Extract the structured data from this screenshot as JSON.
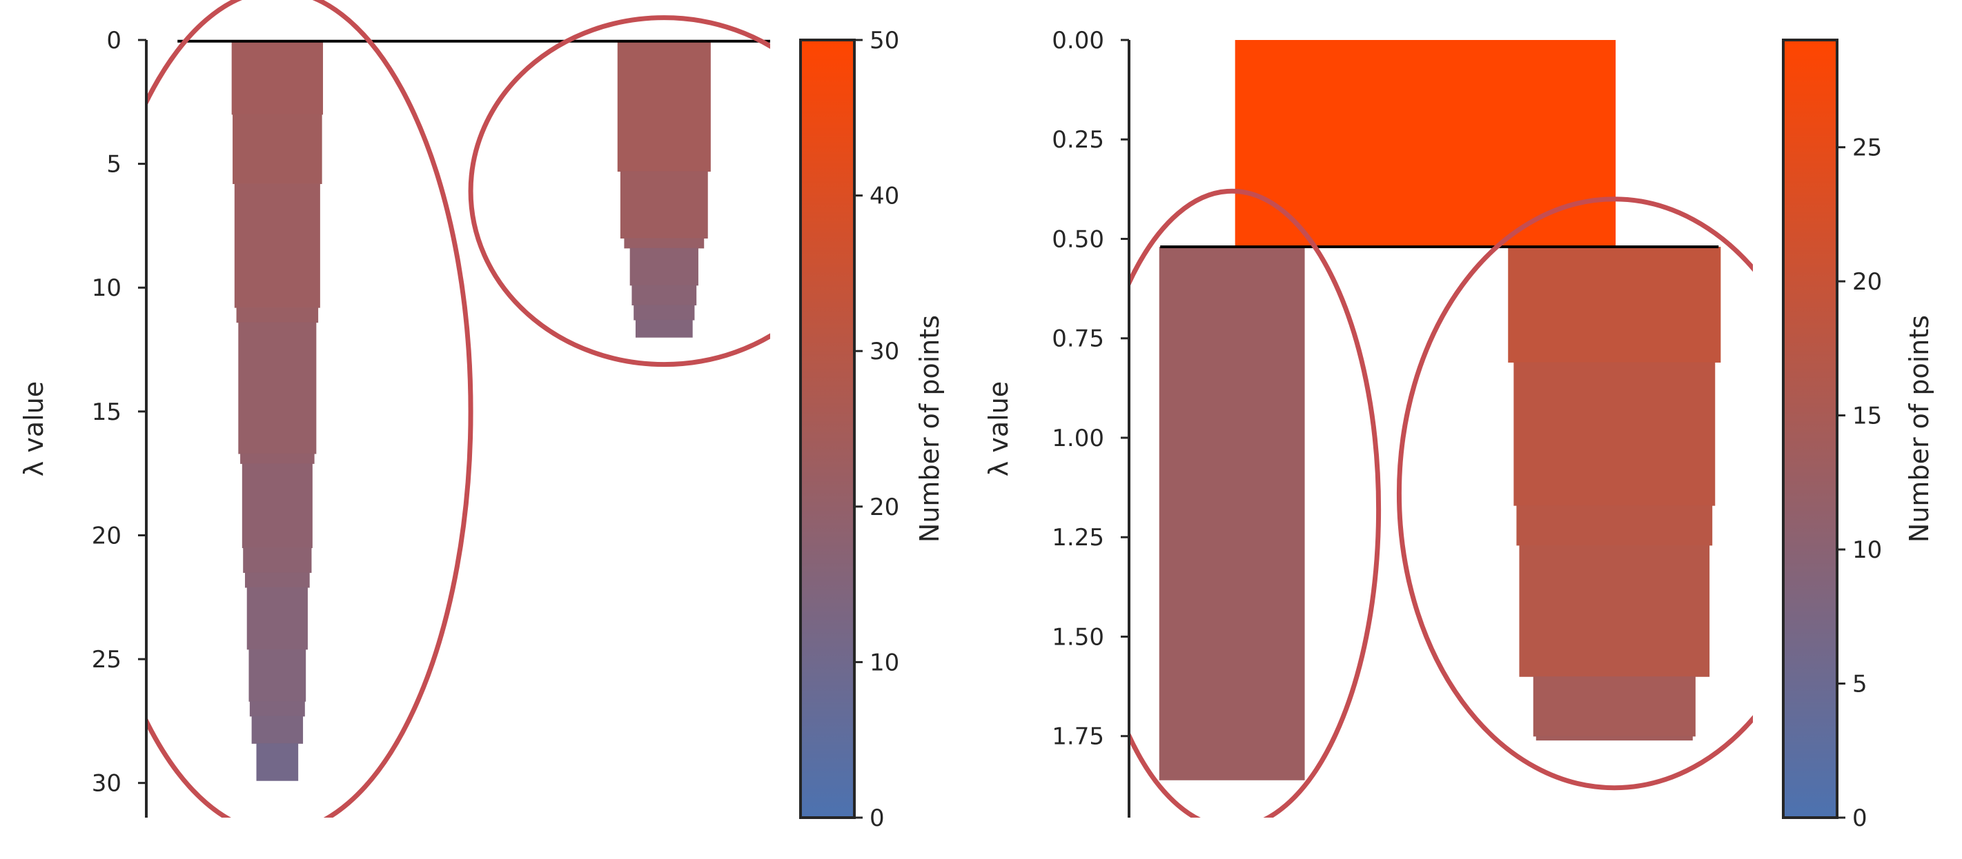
{
  "colors": {
    "low": "#4c72b0",
    "high": "#ff4500",
    "selection": "#c44e52",
    "split": "#000000",
    "axis": "#262626"
  },
  "chart_data": [
    {
      "type": "icicle",
      "title": "",
      "ylabel": "λ value",
      "ylim": [
        0,
        31.4
      ],
      "y_inverted": true,
      "yticks": [
        0,
        5,
        10,
        15,
        20,
        25,
        30
      ],
      "ytick_labels": [
        "0",
        "5",
        "10",
        "15",
        "20",
        "25",
        "30"
      ],
      "colorbar": {
        "label": "Number of points",
        "range": [
          0,
          50
        ],
        "ticks": [
          0,
          10,
          20,
          30,
          40,
          50
        ],
        "tick_labels": [
          "0",
          "10",
          "20",
          "30",
          "40",
          "50"
        ]
      },
      "root": {
        "lambda_start": 0,
        "lambda_end": 0.05,
        "size": 50,
        "x_left": 0.21,
        "x_right": 0.83
      },
      "split_line": {
        "lambda": 0.05,
        "x_left": 0.05,
        "x_right": 1.05
      },
      "clusters": [
        {
          "name": "",
          "selected": true,
          "center_x": 0.21,
          "unit_width": 0.0061,
          "steps": [
            {
              "lambda_end": 3.0,
              "size": 24
            },
            {
              "lambda_end": 5.8,
              "size": 23.5
            },
            {
              "lambda_end": 10.8,
              "size": 22.5
            },
            {
              "lambda_end": 11.4,
              "size": 21.5
            },
            {
              "lambda_end": 16.7,
              "size": 20.5
            },
            {
              "lambda_end": 17.1,
              "size": 19.5
            },
            {
              "lambda_end": 20.5,
              "size": 18.5
            },
            {
              "lambda_end": 21.5,
              "size": 18
            },
            {
              "lambda_end": 22.1,
              "size": 17
            },
            {
              "lambda_end": 24.6,
              "size": 16
            },
            {
              "lambda_end": 26.7,
              "size": 15
            },
            {
              "lambda_end": 27.3,
              "size": 14.5
            },
            {
              "lambda_end": 28.4,
              "size": 13.5
            },
            {
              "lambda_end": 29.9,
              "size": 11
            }
          ],
          "ellipse": {
            "cx": 0.21,
            "cy": 15,
            "rx": 0.31,
            "ry": 17
          }
        },
        {
          "name": "",
          "selected": true,
          "center_x": 0.83,
          "unit_width": 0.0061,
          "steps": [
            {
              "lambda_end": 5.3,
              "size": 24.5
            },
            {
              "lambda_end": 8.0,
              "size": 23
            },
            {
              "lambda_end": 8.4,
              "size": 21
            },
            {
              "lambda_end": 9.9,
              "size": 18
            },
            {
              "lambda_end": 10.7,
              "size": 17
            },
            {
              "lambda_end": 11.3,
              "size": 16
            },
            {
              "lambda_end": 12.0,
              "size": 15
            }
          ],
          "ellipse": {
            "cx": 0.83,
            "cy": 6.1,
            "rx": 0.31,
            "ry": 7
          }
        }
      ]
    },
    {
      "type": "icicle",
      "title": "",
      "ylabel": "λ value",
      "ylim": [
        0,
        1.955
      ],
      "y_inverted": true,
      "yticks": [
        0,
        0.25,
        0.5,
        0.75,
        1.0,
        1.25,
        1.5,
        1.75
      ],
      "ytick_labels": [
        "0.00",
        "0.25",
        "0.50",
        "0.75",
        "1.00",
        "1.25",
        "1.50",
        "1.75"
      ],
      "colorbar": {
        "label": "Number of points",
        "range": [
          0,
          29
        ],
        "ticks": [
          0,
          5,
          10,
          15,
          20,
          25
        ],
        "tick_labels": [
          "0",
          "5",
          "10",
          "15",
          "20",
          "25"
        ]
      },
      "root": {
        "lambda_start": 0,
        "lambda_end": 0.52,
        "size": 29,
        "x_left": 0.17,
        "x_right": 0.78
      },
      "split_line": {
        "lambda": 0.52,
        "x_left": 0.05,
        "x_right": 0.945
      },
      "clusters": [
        {
          "name": "",
          "selected": true,
          "center_x": 0.165,
          "unit_width": 0.01794,
          "steps": [
            {
              "lambda_end": 1.86,
              "size": 13
            }
          ],
          "ellipse": {
            "cx": 0.165,
            "cy": 1.18,
            "rx": 0.235,
            "ry": 0.8
          }
        },
        {
          "name": "",
          "selected": true,
          "center_x": 0.778,
          "unit_width": 0.01794,
          "steps": [
            {
              "lambda_end": 0.81,
              "size": 19
            },
            {
              "lambda_end": 1.17,
              "size": 18
            },
            {
              "lambda_end": 1.27,
              "size": 17.5
            },
            {
              "lambda_end": 1.6,
              "size": 17
            },
            {
              "lambda_end": 1.75,
              "size": 14.5
            },
            {
              "lambda_end": 1.76,
              "size": 14
            }
          ],
          "ellipse": {
            "cx": 0.778,
            "cy": 1.14,
            "rx": 0.345,
            "ry": 0.74
          }
        }
      ]
    }
  ]
}
